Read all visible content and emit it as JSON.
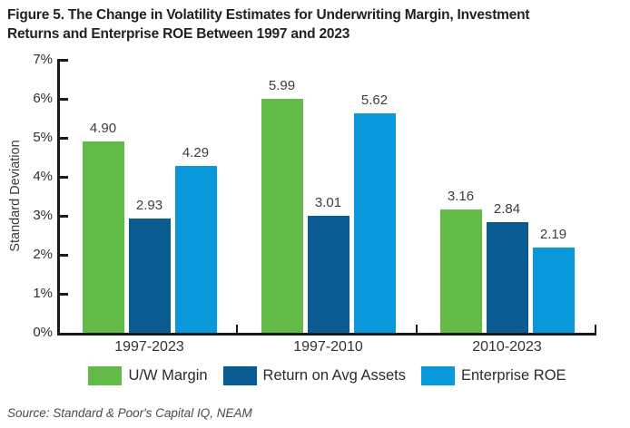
{
  "title": {
    "line1": "Figure 5. The Change in Volatility Estimates for Underwriting Margin, Investment",
    "line2": "Returns and Enterprise ROE Between 1997 and 2023"
  },
  "chart_data": {
    "type": "bar",
    "categories": [
      "1997-2023",
      "1997-2010",
      "2010-2023"
    ],
    "series": [
      {
        "name": "U/W Margin",
        "color": "#61bb46",
        "values": [
          4.9,
          5.99,
          3.16
        ]
      },
      {
        "name": "Return on Avg Assets",
        "color": "#0b5b93",
        "values": [
          2.93,
          3.01,
          2.84
        ]
      },
      {
        "name": "Enterprise ROE",
        "color": "#0999db",
        "values": [
          4.29,
          5.62,
          2.19
        ]
      }
    ],
    "ylabel": "Standard Deviation",
    "xlabel": "",
    "ylim": [
      0,
      7
    ],
    "y_ticks": [
      "0%",
      "1%",
      "2%",
      "3%",
      "4%",
      "5%",
      "6%",
      "7%"
    ],
    "value_label_decimals": 2,
    "grid": false,
    "legend_position": "bottom"
  },
  "source": "Source: Standard & Poor's Capital IQ, NEAM"
}
